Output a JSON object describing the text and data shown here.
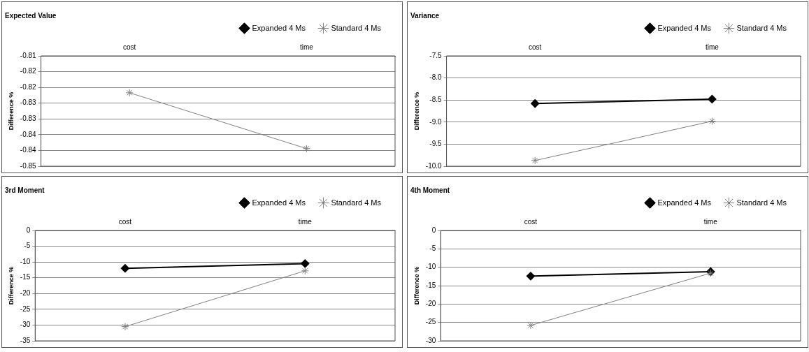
{
  "chart_data": [
    {
      "type": "line",
      "title": "Expected Value",
      "ylabel": "Difference %",
      "categories": [
        "cost",
        "time"
      ],
      "ylim": [
        -0.845,
        -0.81
      ],
      "yticks": [
        -0.81,
        {
          "value": -0.815,
          "label": "-0.82"
        },
        -0.82,
        {
          "value": -0.825,
          "label": "-0.83"
        },
        -0.83,
        {
          "value": -0.835,
          "label": "-0.84"
        },
        -0.84,
        {
          "value": -0.845,
          "label": "-0.85"
        }
      ],
      "grid": "y",
      "legend": "top right",
      "series": [
        {
          "name": "Expanded 4 Ms",
          "color": "#000000",
          "marker": "diamond",
          "values": [
            null,
            null
          ]
        },
        {
          "name": "Standard 4 Ms",
          "color": "#808080",
          "marker": "cross",
          "values": [
            -0.8217,
            -0.8394
          ]
        }
      ]
    },
    {
      "type": "line",
      "title": "Variance",
      "ylabel": "Difference %",
      "categories": [
        "cost",
        "time"
      ],
      "ylim": [
        -10,
        -7.5
      ],
      "yticks": [
        -7.5,
        {
          "value": -8,
          "label": "-8.0"
        },
        -8.5,
        {
          "value": -9,
          "label": "-9.0"
        },
        -9.5,
        {
          "value": -10,
          "label": "-10.0"
        }
      ],
      "grid": "y",
      "legend": "top right",
      "series": [
        {
          "name": "Expanded 4 Ms",
          "color": "#000000",
          "marker": "diamond",
          "values": [
            -8.58,
            -8.48
          ]
        },
        {
          "name": "Standard 4 Ms",
          "color": "#808080",
          "marker": "cross",
          "values": [
            -9.87,
            -8.98
          ]
        }
      ]
    },
    {
      "type": "line",
      "title": "3rd Moment",
      "ylabel": "Difference %",
      "categories": [
        "cost",
        "time"
      ],
      "ylim": [
        -35,
        0
      ],
      "yticks": [
        0,
        -5,
        -10,
        -15,
        -20,
        -25,
        -30,
        -35
      ],
      "grid": "y",
      "legend": "top right",
      "series": [
        {
          "name": "Expanded 4 Ms",
          "color": "#000000",
          "marker": "diamond",
          "values": [
            -12,
            -10.5
          ]
        },
        {
          "name": "Standard 4 Ms",
          "color": "#808080",
          "marker": "cross",
          "values": [
            -30.5,
            -12.8
          ]
        }
      ]
    },
    {
      "type": "line",
      "title": "4th Moment",
      "ylabel": "Difference %",
      "categories": [
        "cost",
        "time"
      ],
      "ylim": [
        -30,
        0
      ],
      "yticks": [
        0,
        -5,
        -10,
        -15,
        -20,
        -25,
        -30
      ],
      "grid": "y",
      "legend": "top right",
      "series": [
        {
          "name": "Expanded 4 Ms",
          "color": "#000000",
          "marker": "diamond",
          "values": [
            -12.4,
            -11.2
          ]
        },
        {
          "name": "Standard 4 Ms",
          "color": "#808080",
          "marker": "cross",
          "values": [
            -25.8,
            -11.6
          ]
        }
      ]
    }
  ]
}
